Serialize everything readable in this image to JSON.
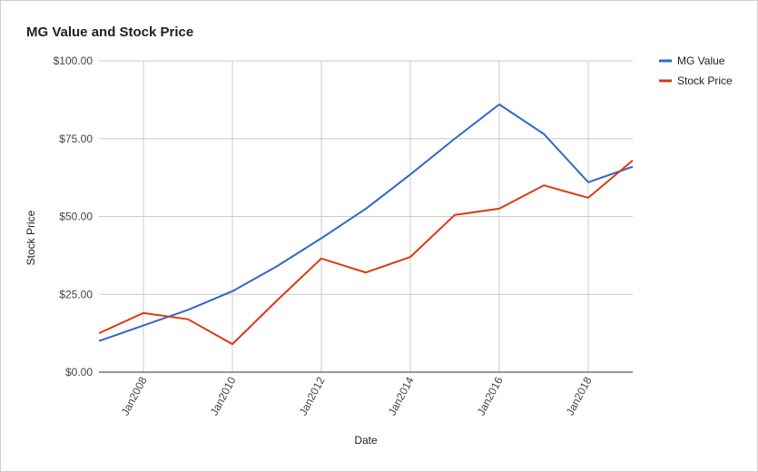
{
  "chart_data": {
    "type": "line",
    "title": "MG Value and Stock Price",
    "xlabel": "Date",
    "ylabel": "Stock Price",
    "x": [
      "2007-01-01",
      "2008-01-01",
      "2009-01-01",
      "2010-01-01",
      "2011-01-01",
      "2012-01-01",
      "2013-01-01",
      "2014-01-01",
      "2015-01-01",
      "2016-01-01",
      "2017-01-01",
      "2018-01-01",
      "2019-01-01"
    ],
    "xticks": [
      {
        "date": "2008-01-01",
        "label": "Jan2008"
      },
      {
        "date": "2010-01-01",
        "label": "Jan2010"
      },
      {
        "date": "2012-01-01",
        "label": "Jan2012"
      },
      {
        "date": "2014-01-01",
        "label": "Jan2014"
      },
      {
        "date": "2016-01-01",
        "label": "Jan2016"
      },
      {
        "date": "2018-01-01",
        "label": "Jan2018"
      }
    ],
    "xlim": [
      "2007-01-01",
      "2019-01-01"
    ],
    "yticks": [
      {
        "value": 0,
        "label": "$0.00"
      },
      {
        "value": 25,
        "label": "$25.00"
      },
      {
        "value": 50,
        "label": "$50.00"
      },
      {
        "value": 75,
        "label": "$75.00"
      },
      {
        "value": 100,
        "label": "$100.00"
      }
    ],
    "ylim": [
      0,
      100
    ],
    "grid": true,
    "legend_position": "right",
    "series": [
      {
        "name": "MG Value",
        "color": "#3366cc",
        "values": [
          10,
          15,
          20,
          26,
          34,
          43,
          52.5,
          63.5,
          75,
          86,
          76.5,
          61,
          66
        ]
      },
      {
        "name": "Stock Price",
        "color": "#dc3912",
        "values": [
          12.5,
          19,
          17,
          9,
          23,
          36.5,
          32,
          37,
          50.5,
          52.5,
          60,
          56,
          68
        ]
      }
    ]
  }
}
